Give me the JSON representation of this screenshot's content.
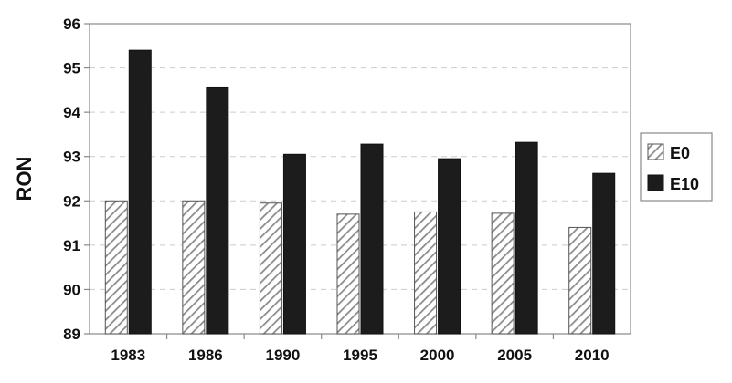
{
  "chart_data": {
    "type": "bar",
    "title": "",
    "xlabel": "",
    "ylabel": "RON",
    "ylim": [
      89,
      96
    ],
    "yticks": [
      89,
      90,
      91,
      92,
      93,
      94,
      95,
      96
    ],
    "grid": true,
    "legend_position": "right",
    "categories": [
      "1983",
      "1986",
      "1990",
      "1995",
      "2000",
      "2005",
      "2010"
    ],
    "series": [
      {
        "name": "E0",
        "style": "hatched",
        "color": "#ffffff",
        "hatch_color": "#8a8a8a",
        "values": [
          92.0,
          92.0,
          91.95,
          91.7,
          91.75,
          91.72,
          91.4
        ]
      },
      {
        "name": "E10",
        "style": "solid",
        "color": "#1c1c1c",
        "values": [
          95.4,
          94.57,
          93.05,
          93.28,
          92.95,
          93.32,
          92.62
        ]
      }
    ]
  }
}
